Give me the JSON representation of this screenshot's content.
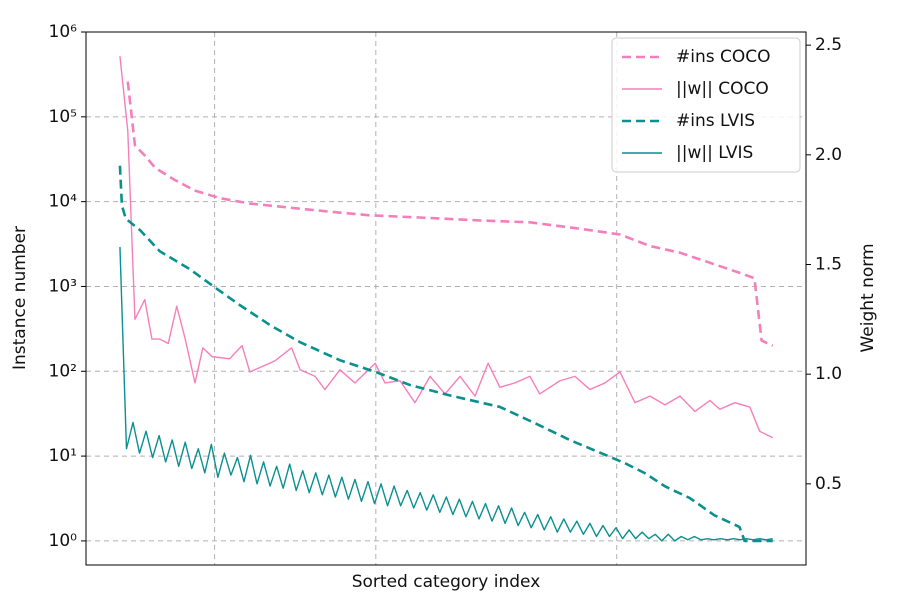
{
  "chart_data": {
    "type": "line",
    "xlabel": "Sorted category index",
    "ylabel": "Instance number",
    "y2label": "Weight norm",
    "xlim": [
      -5.2,
      105.1
    ],
    "xticks": [
      14.5,
      39.2,
      76.1
    ],
    "ylim": [
      0.52,
      1000000
    ],
    "yscale": "log",
    "yticks": [
      {
        "value": 1,
        "label": "10⁰"
      },
      {
        "value": 10,
        "label": "10¹"
      },
      {
        "value": 100,
        "label": "10²"
      },
      {
        "value": 1000,
        "label": "10³"
      },
      {
        "value": 10000,
        "label": "10⁴"
      },
      {
        "value": 100000,
        "label": "10⁵"
      },
      {
        "value": 1000000,
        "label": "10⁶"
      }
    ],
    "y2lim": [
      0.13,
      2.56
    ],
    "y2ticks": [
      0.5,
      {
        "value": 1.0,
        "label": "1.0"
      },
      1.5,
      {
        "value": 2.0,
        "label": "2.0"
      },
      2.5
    ],
    "grid": true,
    "legend": "upper right",
    "series": [
      {
        "name": "#ins COCO",
        "color": "#f57fbd",
        "linestyle": "dashed",
        "axis": "y",
        "x": [
          1.2,
          2.3,
          3.8,
          5.4,
          8.4,
          11.5,
          15.3,
          19.9,
          26.0,
          32.2,
          38.3,
          45.9,
          55.1,
          62.8,
          70.4,
          76.6,
          81.2,
          85.8,
          90.4,
          94.9,
          97.2,
          98.3,
          100
        ],
        "values": [
          260000,
          46000,
          35000,
          25000,
          18000,
          13500,
          11000,
          9500,
          8500,
          7600,
          6900,
          6500,
          6000,
          5700,
          4800,
          4100,
          3000,
          2500,
          1900,
          1450,
          1250,
          230,
          200
        ]
      },
      {
        "name": "||w|| COCO",
        "color": "#f57fbd",
        "linestyle": "solid",
        "axis": "y2",
        "x": [
          0,
          1.2,
          2.3,
          3.8,
          4.9,
          6.1,
          7.4,
          8.7,
          10.0,
          11.5,
          12.7,
          14.1,
          16.8,
          18.7,
          19.9,
          21.4,
          23.7,
          26.3,
          27.6,
          29.9,
          31.4,
          33.7,
          36.0,
          39.1,
          40.6,
          42.9,
          45.2,
          47.5,
          49.8,
          52.1,
          54.4,
          56.4,
          58.2,
          60.5,
          62.8,
          64.3,
          67.4,
          69.7,
          72.0,
          74.3,
          76.6,
          78.9,
          81.2,
          83.5,
          85.8,
          88.1,
          90.4,
          91.9,
          94.2,
          96.5,
          98.0,
          100
        ],
        "values": [
          2.45,
          2.11,
          1.25,
          1.34,
          1.16,
          1.16,
          1.14,
          1.31,
          1.16,
          0.96,
          1.12,
          1.08,
          1.07,
          1.13,
          1.01,
          1.03,
          1.06,
          1.12,
          1.02,
          0.99,
          0.93,
          1.02,
          0.96,
          1.05,
          0.96,
          0.97,
          0.87,
          0.99,
          0.91,
          0.99,
          0.9,
          1.05,
          0.94,
          0.96,
          0.99,
          0.91,
          0.97,
          0.99,
          0.93,
          0.96,
          1.01,
          0.87,
          0.9,
          0.86,
          0.9,
          0.83,
          0.88,
          0.84,
          0.87,
          0.85,
          0.74,
          0.71
        ]
      },
      {
        "name": "#ins LVIS",
        "color": "#0b8f8f",
        "linestyle": "dashed",
        "axis": "y",
        "x": [
          0,
          0.3,
          0.9,
          3.1,
          6.1,
          10.7,
          14.5,
          18.4,
          23.0,
          27.6,
          33.7,
          39.2,
          44.4,
          50.5,
          58.2,
          64.3,
          68.9,
          73.5,
          77.3,
          80.4,
          83.5,
          87.3,
          91.1,
          94.9,
          95.7,
          100
        ],
        "values": [
          26500,
          9000,
          6300,
          4600,
          2600,
          1600,
          980,
          600,
          350,
          220,
          135,
          98,
          69,
          52,
          38,
          23,
          15.5,
          11,
          8.3,
          6.3,
          4.4,
          3.2,
          2,
          1.46,
          1,
          1
        ]
      },
      {
        "name": "||w|| LVIS",
        "color": "#0b8f8f",
        "linestyle": "solid",
        "axis": "y2",
        "x": [
          0,
          1,
          2,
          3,
          4,
          5,
          6,
          7,
          8,
          9,
          10,
          11,
          12,
          13,
          14,
          15,
          16,
          17,
          18,
          19,
          20,
          21,
          22,
          23,
          24,
          25,
          26,
          27,
          28,
          29,
          30,
          31,
          32,
          33,
          34,
          35,
          36,
          37,
          38,
          39,
          40,
          41,
          42,
          43,
          44,
          45,
          46,
          47,
          48,
          49,
          50,
          51,
          52,
          53,
          54,
          55,
          56,
          57,
          58,
          59,
          60,
          61,
          62,
          63,
          64,
          65,
          66,
          67,
          68,
          69,
          70,
          71,
          72,
          73,
          74,
          75,
          76,
          77,
          78,
          79,
          80,
          81,
          82,
          83,
          84,
          85,
          86,
          87,
          88,
          89,
          90,
          91,
          92,
          93,
          94,
          95,
          96,
          97,
          98,
          99,
          100
        ],
        "values": [
          1.58,
          0.66,
          0.78,
          0.64,
          0.74,
          0.62,
          0.72,
          0.6,
          0.7,
          0.58,
          0.69,
          0.57,
          0.66,
          0.55,
          0.68,
          0.53,
          0.64,
          0.54,
          0.62,
          0.51,
          0.63,
          0.5,
          0.6,
          0.49,
          0.58,
          0.48,
          0.59,
          0.47,
          0.56,
          0.46,
          0.55,
          0.45,
          0.54,
          0.44,
          0.53,
          0.43,
          0.52,
          0.42,
          0.51,
          0.41,
          0.5,
          0.4,
          0.49,
          0.4,
          0.47,
          0.39,
          0.46,
          0.38,
          0.45,
          0.37,
          0.44,
          0.36,
          0.43,
          0.35,
          0.42,
          0.34,
          0.41,
          0.33,
          0.4,
          0.32,
          0.39,
          0.31,
          0.37,
          0.3,
          0.36,
          0.29,
          0.35,
          0.28,
          0.34,
          0.28,
          0.33,
          0.27,
          0.32,
          0.26,
          0.31,
          0.26,
          0.3,
          0.25,
          0.29,
          0.25,
          0.28,
          0.25,
          0.27,
          0.24,
          0.27,
          0.24,
          0.26,
          0.245,
          0.26,
          0.245,
          0.25,
          0.245,
          0.25,
          0.245,
          0.25,
          0.245,
          0.25,
          0.245,
          0.25,
          0.245,
          0.25
        ]
      }
    ]
  }
}
